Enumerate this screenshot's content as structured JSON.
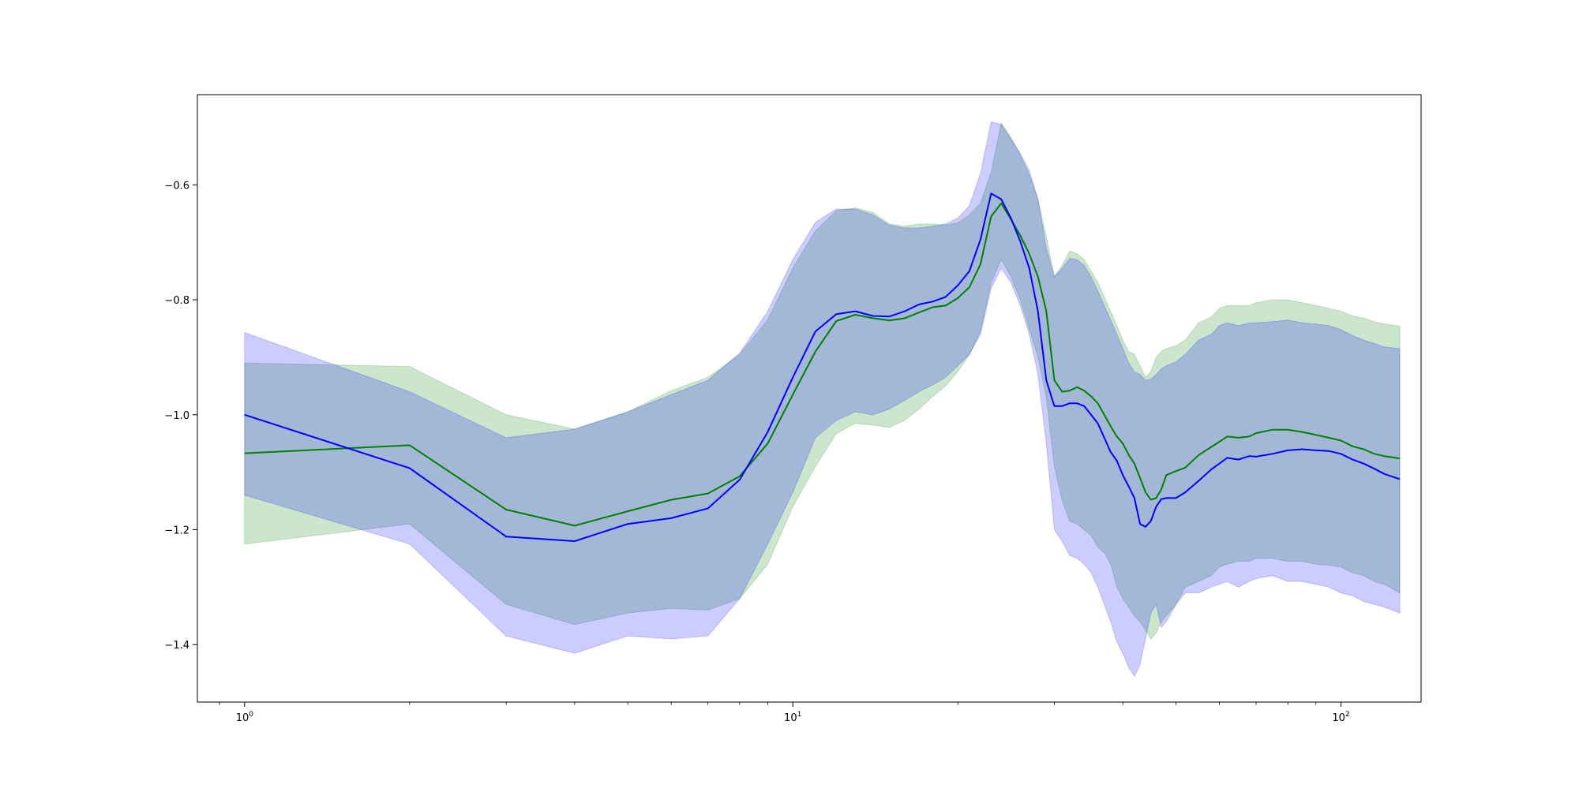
{
  "chart_data": {
    "type": "line",
    "title": "",
    "xlabel": "",
    "ylabel": "",
    "xscale": "log",
    "xlim": [
      0.82,
      140
    ],
    "ylim": [
      -1.5,
      -0.443
    ],
    "grid": false,
    "legend": "none",
    "x_ticks": [
      {
        "value": 1,
        "label": "10",
        "exp": "0"
      },
      {
        "value": 10,
        "label": "10",
        "exp": "1"
      },
      {
        "value": 100,
        "label": "10",
        "exp": "2"
      }
    ],
    "y_ticks": [
      {
        "value": -0.6,
        "label": "−0.6"
      },
      {
        "value": -0.8,
        "label": "−0.8"
      },
      {
        "value": -1.0,
        "label": "−1.0"
      },
      {
        "value": -1.2,
        "label": "−1.2"
      },
      {
        "value": -1.4,
        "label": "−1.4"
      }
    ],
    "series": [
      {
        "color": "#008000",
        "fill_color": "#008000",
        "fill_opacity": 0.2,
        "x": [
          1,
          2,
          3,
          4,
          5,
          6,
          7,
          8,
          9,
          10,
          11,
          12,
          13,
          14,
          15,
          16,
          17,
          18,
          19,
          20,
          21,
          22,
          23,
          24,
          25,
          26,
          27,
          28,
          29,
          30,
          31,
          32,
          33,
          34,
          35,
          36,
          37,
          38,
          39,
          40,
          41,
          42,
          43,
          44,
          45,
          46,
          47,
          48,
          50,
          52,
          55,
          58,
          60,
          62,
          65,
          68,
          70,
          75,
          80,
          85,
          90,
          95,
          100,
          105,
          110,
          115,
          120,
          128
        ],
        "mean": [
          -1.067,
          -1.053,
          -1.165,
          -1.193,
          -1.168,
          -1.148,
          -1.137,
          -1.107,
          -1.05,
          -0.965,
          -0.89,
          -0.837,
          -0.826,
          -0.832,
          -0.836,
          -0.832,
          -0.822,
          -0.813,
          -0.81,
          -0.797,
          -0.778,
          -0.738,
          -0.655,
          -0.632,
          -0.66,
          -0.688,
          -0.72,
          -0.76,
          -0.82,
          -0.94,
          -0.96,
          -0.958,
          -0.952,
          -0.958,
          -0.968,
          -0.98,
          -1.0,
          -1.02,
          -1.038,
          -1.05,
          -1.07,
          -1.085,
          -1.11,
          -1.135,
          -1.148,
          -1.145,
          -1.13,
          -1.105,
          -1.098,
          -1.092,
          -1.07,
          -1.056,
          -1.047,
          -1.038,
          -1.04,
          -1.038,
          -1.032,
          -1.026,
          -1.026,
          -1.03,
          -1.035,
          -1.04,
          -1.045,
          -1.055,
          -1.06,
          -1.068,
          -1.072,
          -1.076
        ],
        "upper": [
          -0.91,
          -0.916,
          -1.0,
          -1.025,
          -0.995,
          -0.958,
          -0.935,
          -0.895,
          -0.835,
          -0.745,
          -0.68,
          -0.645,
          -0.64,
          -0.648,
          -0.668,
          -0.672,
          -0.668,
          -0.668,
          -0.67,
          -0.666,
          -0.652,
          -0.632,
          -0.578,
          -0.492,
          -0.518,
          -0.548,
          -0.582,
          -0.625,
          -0.69,
          -0.76,
          -0.74,
          -0.715,
          -0.72,
          -0.73,
          -0.75,
          -0.77,
          -0.795,
          -0.82,
          -0.845,
          -0.87,
          -0.89,
          -0.895,
          -0.915,
          -0.935,
          -0.925,
          -0.9,
          -0.89,
          -0.885,
          -0.88,
          -0.87,
          -0.84,
          -0.83,
          -0.815,
          -0.81,
          -0.81,
          -0.81,
          -0.805,
          -0.8,
          -0.8,
          -0.805,
          -0.81,
          -0.815,
          -0.82,
          -0.828,
          -0.832,
          -0.838,
          -0.842,
          -0.846
        ],
        "lower": [
          -1.225,
          -1.19,
          -1.33,
          -1.365,
          -1.345,
          -1.337,
          -1.34,
          -1.32,
          -1.26,
          -1.16,
          -1.09,
          -1.033,
          -1.015,
          -1.018,
          -1.022,
          -1.01,
          -0.99,
          -0.968,
          -0.95,
          -0.925,
          -0.895,
          -0.855,
          -0.77,
          -0.73,
          -0.76,
          -0.8,
          -0.85,
          -0.9,
          -0.97,
          -1.09,
          -1.15,
          -1.185,
          -1.19,
          -1.2,
          -1.21,
          -1.23,
          -1.24,
          -1.26,
          -1.3,
          -1.32,
          -1.335,
          -1.35,
          -1.36,
          -1.375,
          -1.39,
          -1.38,
          -1.36,
          -1.35,
          -1.33,
          -1.3,
          -1.29,
          -1.28,
          -1.265,
          -1.26,
          -1.255,
          -1.255,
          -1.25,
          -1.25,
          -1.255,
          -1.255,
          -1.26,
          -1.262,
          -1.265,
          -1.275,
          -1.28,
          -1.29,
          -1.295,
          -1.31
        ]
      },
      {
        "color": "#0000ff",
        "fill_color": "#0000ff",
        "fill_opacity": 0.2,
        "x": [
          1,
          2,
          3,
          4,
          5,
          6,
          7,
          8,
          9,
          10,
          11,
          12,
          13,
          14,
          15,
          16,
          17,
          18,
          19,
          20,
          21,
          22,
          23,
          24,
          25,
          26,
          27,
          28,
          29,
          30,
          31,
          32,
          33,
          34,
          35,
          36,
          37,
          38,
          39,
          40,
          41,
          42,
          43,
          44,
          45,
          46,
          47,
          48,
          50,
          52,
          55,
          58,
          60,
          62,
          65,
          68,
          70,
          75,
          80,
          85,
          90,
          95,
          100,
          105,
          110,
          115,
          120,
          128
        ],
        "mean": [
          -1.0,
          -1.093,
          -1.212,
          -1.22,
          -1.19,
          -1.18,
          -1.163,
          -1.113,
          -1.03,
          -0.935,
          -0.855,
          -0.825,
          -0.82,
          -0.828,
          -0.829,
          -0.82,
          -0.808,
          -0.803,
          -0.795,
          -0.775,
          -0.75,
          -0.695,
          -0.615,
          -0.625,
          -0.658,
          -0.698,
          -0.745,
          -0.82,
          -0.94,
          -0.985,
          -0.985,
          -0.98,
          -0.98,
          -0.985,
          -1.0,
          -1.015,
          -1.04,
          -1.065,
          -1.08,
          -1.105,
          -1.125,
          -1.145,
          -1.19,
          -1.195,
          -1.185,
          -1.16,
          -1.147,
          -1.145,
          -1.145,
          -1.135,
          -1.115,
          -1.095,
          -1.085,
          -1.075,
          -1.078,
          -1.072,
          -1.073,
          -1.068,
          -1.062,
          -1.06,
          -1.062,
          -1.063,
          -1.068,
          -1.078,
          -1.085,
          -1.094,
          -1.103,
          -1.112
        ],
        "upper": [
          -0.857,
          -0.96,
          -1.04,
          -1.025,
          -0.995,
          -0.965,
          -0.94,
          -0.893,
          -0.82,
          -0.73,
          -0.665,
          -0.642,
          -0.642,
          -0.652,
          -0.67,
          -0.675,
          -0.675,
          -0.672,
          -0.668,
          -0.658,
          -0.636,
          -0.58,
          -0.49,
          -0.495,
          -0.52,
          -0.545,
          -0.575,
          -0.625,
          -0.71,
          -0.76,
          -0.745,
          -0.728,
          -0.73,
          -0.74,
          -0.76,
          -0.785,
          -0.81,
          -0.835,
          -0.86,
          -0.885,
          -0.91,
          -0.925,
          -0.93,
          -0.94,
          -0.938,
          -0.93,
          -0.92,
          -0.915,
          -0.908,
          -0.895,
          -0.87,
          -0.86,
          -0.845,
          -0.84,
          -0.845,
          -0.84,
          -0.84,
          -0.838,
          -0.835,
          -0.84,
          -0.842,
          -0.845,
          -0.852,
          -0.862,
          -0.87,
          -0.876,
          -0.882,
          -0.885
        ],
        "lower": [
          -1.14,
          -1.225,
          -1.385,
          -1.415,
          -1.385,
          -1.39,
          -1.385,
          -1.32,
          -1.225,
          -1.135,
          -1.04,
          -1.01,
          -0.995,
          -1.0,
          -0.99,
          -0.975,
          -0.96,
          -0.948,
          -0.935,
          -0.915,
          -0.895,
          -0.86,
          -0.78,
          -0.745,
          -0.77,
          -0.81,
          -0.86,
          -0.93,
          -1.05,
          -1.2,
          -1.22,
          -1.245,
          -1.25,
          -1.26,
          -1.275,
          -1.3,
          -1.33,
          -1.36,
          -1.395,
          -1.415,
          -1.44,
          -1.455,
          -1.435,
          -1.39,
          -1.345,
          -1.33,
          -1.37,
          -1.36,
          -1.33,
          -1.31,
          -1.31,
          -1.3,
          -1.295,
          -1.29,
          -1.3,
          -1.29,
          -1.285,
          -1.28,
          -1.29,
          -1.29,
          -1.295,
          -1.3,
          -1.31,
          -1.315,
          -1.325,
          -1.33,
          -1.335,
          -1.345
        ]
      }
    ]
  }
}
